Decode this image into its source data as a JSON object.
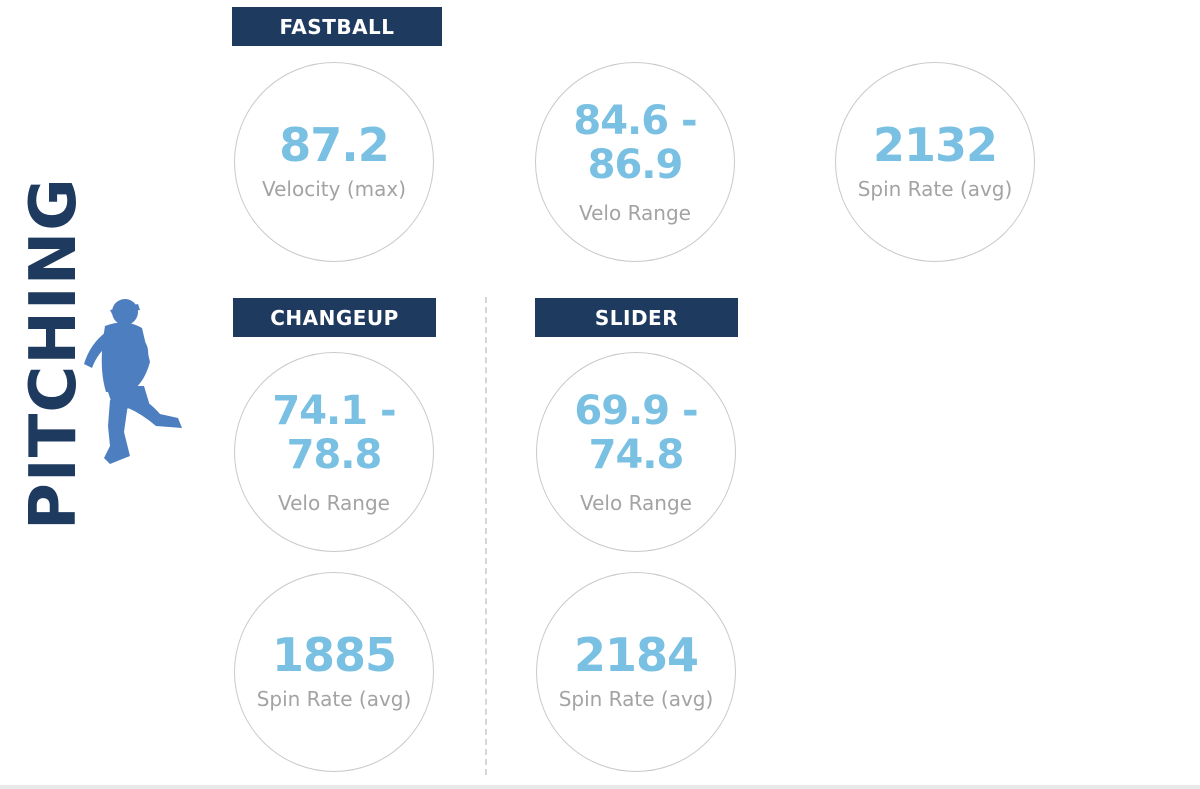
{
  "side_title": "PITCHING",
  "colors": {
    "navy": "#1f3a5f",
    "value_blue": "#79c0e3",
    "caption_gray": "#a3a3a3",
    "silhouette_blue": "#4d7fc0"
  },
  "icons": {
    "pitcher": "pitcher-silhouette-icon"
  },
  "fastball": {
    "label": "FASTBALL",
    "velocity_max": {
      "value": "87.2",
      "caption": "Velocity (max)"
    },
    "velo_range": {
      "value_line1": "84.6 -",
      "value_line2": "86.9",
      "caption": "Velo Range"
    },
    "spin_rate": {
      "value": "2132",
      "caption": "Spin Rate (avg)"
    }
  },
  "changeup": {
    "label": "CHANGEUP",
    "velo_range": {
      "value_line1": "74.1 -",
      "value_line2": "78.8",
      "caption": "Velo Range"
    },
    "spin_rate": {
      "value": "1885",
      "caption": "Spin Rate (avg)"
    }
  },
  "slider": {
    "label": "SLIDER",
    "velo_range": {
      "value_line1": "69.9 -",
      "value_line2": "74.8",
      "caption": "Velo Range"
    },
    "spin_rate": {
      "value": "2184",
      "caption": "Spin Rate (avg)"
    }
  }
}
